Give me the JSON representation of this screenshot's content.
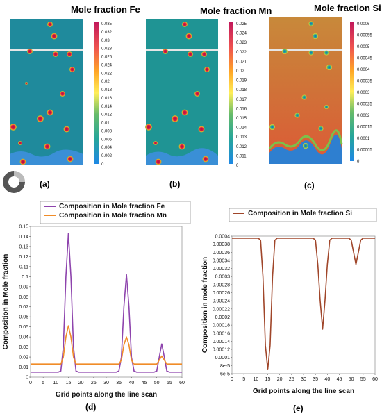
{
  "colors": {
    "fe": "#8e44ad",
    "mn": "#f08c28",
    "si": "#a0462a",
    "matrix_ab": "#1f8a9c",
    "matrix_si_top": "#c98a36",
    "matrix_si_bottom": "#d8643a",
    "particle": "#d01040"
  },
  "panels": {
    "a": "(a)",
    "b": "(b)",
    "c": "(c)",
    "d": "(d)",
    "e": "(e)"
  },
  "maps": [
    {
      "id": "a",
      "title": "Mole fraction Fe",
      "colorbar_ticks": [
        "0.035",
        "0.032",
        "0.03",
        "0.028",
        "0.026",
        "0.024",
        "0.022",
        "0.02",
        "0.018",
        "0.016",
        "0.014",
        "0.012",
        "0.01",
        "0.008",
        "0.006",
        "0.004",
        "0.002",
        "0"
      ]
    },
    {
      "id": "b",
      "title": "Mole fraction Mn",
      "colorbar_ticks": [
        "0.025",
        "0.024",
        "0.023",
        "0.022",
        "0.021",
        "0.02",
        "0.019",
        "0.018",
        "0.017",
        "0.016",
        "0.015",
        "0.014",
        "0.013",
        "0.012",
        "0.011",
        "0"
      ]
    },
    {
      "id": "c",
      "title": "Mole fraction Si",
      "colorbar_ticks": [
        "0.0006",
        "0.00055",
        "0.0005",
        "0.00045",
        "0.0004",
        "0.00035",
        "0.0003",
        "0.00025",
        "0.0002",
        "0.00015",
        "0.0001",
        "0.00005",
        "0"
      ]
    }
  ],
  "chart_data": [
    {
      "type": "line",
      "panel": "(d)",
      "xlabel": "Grid points along the line scan",
      "ylabel": "Composition in Mole fraction",
      "xlim": [
        0,
        60
      ],
      "ylim": [
        0,
        0.15
      ],
      "xticks": [
        "0",
        "5",
        "10",
        "15",
        "20",
        "25",
        "30",
        "35",
        "40",
        "45",
        "50",
        "55",
        "60"
      ],
      "yticks": [
        "0",
        "0.01",
        "0.02",
        "0.03",
        "0.04",
        "0.05",
        "0.06",
        "0.07",
        "0.08",
        "0.09",
        "0.1",
        "0.11",
        "0.12",
        "0.13",
        "0.14",
        "0.15"
      ],
      "legend_position": "top-left",
      "x": [
        0,
        1,
        2,
        3,
        4,
        5,
        6,
        7,
        8,
        9,
        10,
        11,
        12,
        13,
        14,
        15,
        16,
        17,
        18,
        19,
        20,
        21,
        22,
        23,
        24,
        25,
        26,
        27,
        28,
        29,
        30,
        31,
        32,
        33,
        34,
        35,
        36,
        37,
        38,
        39,
        40,
        41,
        42,
        43,
        44,
        45,
        46,
        47,
        48,
        49,
        50,
        51,
        52,
        53,
        54,
        55,
        56,
        57,
        58,
        59,
        60
      ],
      "series": [
        {
          "name": "Composition in Mole fraction Fe",
          "values": [
            0.005,
            0.005,
            0.005,
            0.005,
            0.005,
            0.005,
            0.005,
            0.005,
            0.005,
            0.005,
            0.005,
            0.005,
            0.006,
            0.03,
            0.1,
            0.143,
            0.1,
            0.03,
            0.006,
            0.005,
            0.005,
            0.005,
            0.005,
            0.005,
            0.005,
            0.005,
            0.005,
            0.005,
            0.005,
            0.005,
            0.005,
            0.005,
            0.005,
            0.005,
            0.005,
            0.006,
            0.02,
            0.07,
            0.102,
            0.07,
            0.02,
            0.006,
            0.005,
            0.005,
            0.005,
            0.005,
            0.005,
            0.005,
            0.005,
            0.005,
            0.006,
            0.02,
            0.033,
            0.02,
            0.006,
            0.005,
            0.005,
            0.005,
            0.005,
            0.005,
            0.005
          ]
        },
        {
          "name": "Composition in Mole fraction Mn",
          "values": [
            0.013,
            0.013,
            0.013,
            0.013,
            0.013,
            0.013,
            0.013,
            0.013,
            0.013,
            0.013,
            0.013,
            0.013,
            0.013,
            0.02,
            0.04,
            0.051,
            0.04,
            0.02,
            0.013,
            0.013,
            0.013,
            0.013,
            0.013,
            0.013,
            0.013,
            0.013,
            0.013,
            0.013,
            0.013,
            0.013,
            0.013,
            0.013,
            0.013,
            0.013,
            0.013,
            0.013,
            0.017,
            0.032,
            0.04,
            0.032,
            0.017,
            0.013,
            0.013,
            0.013,
            0.013,
            0.013,
            0.013,
            0.013,
            0.013,
            0.013,
            0.013,
            0.017,
            0.021,
            0.017,
            0.013,
            0.013,
            0.013,
            0.013,
            0.013,
            0.013,
            0.013
          ]
        }
      ]
    },
    {
      "type": "line",
      "panel": "(e)",
      "xlabel": "Grid points along the line scan",
      "ylabel": "Composition in mole fraction",
      "xlim": [
        0,
        60
      ],
      "ylim": [
        6e-05,
        0.0004
      ],
      "xticks": [
        "0",
        "5",
        "10",
        "15",
        "20",
        "25",
        "30",
        "35",
        "40",
        "45",
        "50",
        "55",
        "60"
      ],
      "yticks": [
        "6e-5",
        "8e-5",
        "0.0001",
        "0.00012",
        "0.00014",
        "0.00016",
        "0.00018",
        "0.0002",
        "0.00022",
        "0.00024",
        "0.00026",
        "0.00028",
        "0.0003",
        "0.00032",
        "0.00034",
        "0.00036",
        "0.00038",
        "0.0004"
      ],
      "legend_position": "top",
      "x": [
        0,
        1,
        2,
        3,
        4,
        5,
        6,
        7,
        8,
        9,
        10,
        11,
        12,
        13,
        14,
        15,
        16,
        17,
        18,
        19,
        20,
        21,
        22,
        23,
        24,
        25,
        26,
        27,
        28,
        29,
        30,
        31,
        32,
        33,
        34,
        35,
        36,
        37,
        38,
        39,
        40,
        41,
        42,
        43,
        44,
        45,
        46,
        47,
        48,
        49,
        50,
        51,
        52,
        53,
        54,
        55,
        56,
        57,
        58,
        59,
        60
      ],
      "series": [
        {
          "name": "Composition in Mole fraction Si",
          "values": [
            0.000395,
            0.000395,
            0.000395,
            0.000395,
            0.000395,
            0.000395,
            0.000395,
            0.000395,
            0.000395,
            0.000395,
            0.000395,
            0.000395,
            0.00039,
            0.0003,
            0.00013,
            7e-05,
            0.00013,
            0.0003,
            0.00039,
            0.000395,
            0.000395,
            0.000395,
            0.000395,
            0.000395,
            0.000395,
            0.000395,
            0.000395,
            0.000395,
            0.000395,
            0.000395,
            0.000395,
            0.000395,
            0.000395,
            0.000395,
            0.000395,
            0.00039,
            0.00033,
            0.00024,
            0.00017,
            0.00024,
            0.00033,
            0.00039,
            0.000395,
            0.000395,
            0.000395,
            0.000395,
            0.000395,
            0.000395,
            0.000395,
            0.000395,
            0.00039,
            0.00036,
            0.00033,
            0.00036,
            0.00039,
            0.000395,
            0.000395,
            0.000395,
            0.000395,
            0.000395,
            0.000395
          ]
        }
      ]
    }
  ]
}
